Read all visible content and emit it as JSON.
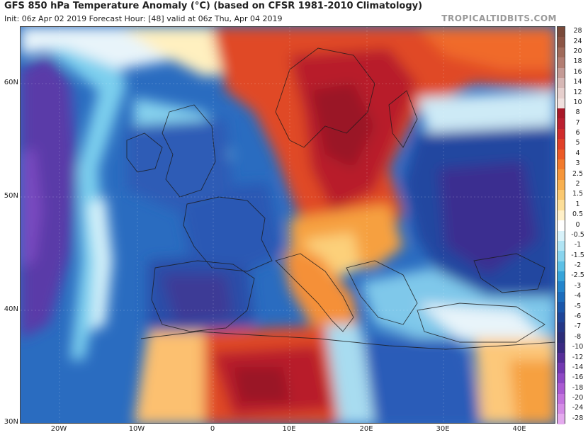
{
  "header": {
    "title": "GFS 850 hPa Temperature Anomaly (°C) (based on CFSR 1981-2010 Climatology)",
    "subtitle": "Init: 06z Apr 02 2019   Forecast Hour: [48]   valid at 06z Thu, Apr 04 2019",
    "brand": "TROPICALTIDBITS.COM"
  },
  "map": {
    "lat_labels": [
      "60N",
      "50N",
      "40N",
      "30N"
    ],
    "lon_labels": [
      "20W",
      "10W",
      "0",
      "10E",
      "20E",
      "30E",
      "40E"
    ]
  },
  "colorbar": {
    "labels": [
      "28",
      "24",
      "20",
      "18",
      "16",
      "14",
      "12",
      "10",
      "8",
      "7",
      "6",
      "5",
      "4",
      "3",
      "2.5",
      "2",
      "1.5",
      "1",
      "0.5",
      "0",
      "-0.5",
      "-1",
      "-1.5",
      "-2",
      "-2.5",
      "-3",
      "-4",
      "-5",
      "-6",
      "-7",
      "-8",
      "-10",
      "-12",
      "-14",
      "-16",
      "-18",
      "-20",
      "-24",
      "-28"
    ],
    "colors": [
      "#7a4a3a",
      "#8c5545",
      "#a06a5a",
      "#b27d72",
      "#c49a95",
      "#d6b7b5",
      "#e6cfcd",
      "#f0e0de",
      "#a81828",
      "#bb2030",
      "#d02c2c",
      "#e04028",
      "#ec5a26",
      "#f27a2c",
      "#f6963a",
      "#f8b050",
      "#fac870",
      "#fcde98",
      "#fff0c8",
      "#ffffff",
      "#d8f2fa",
      "#b0e4f4",
      "#88d4ee",
      "#5cc0e6",
      "#36a4da",
      "#2284cc",
      "#1c6cbc",
      "#1a56aa",
      "#1e4498",
      "#243686",
      "#2c2c78",
      "#3a2a82",
      "#562e98",
      "#7238b0",
      "#8e48c4",
      "#aa5ad2",
      "#c272de",
      "#d48ce6",
      "#e4aaee"
    ]
  }
}
